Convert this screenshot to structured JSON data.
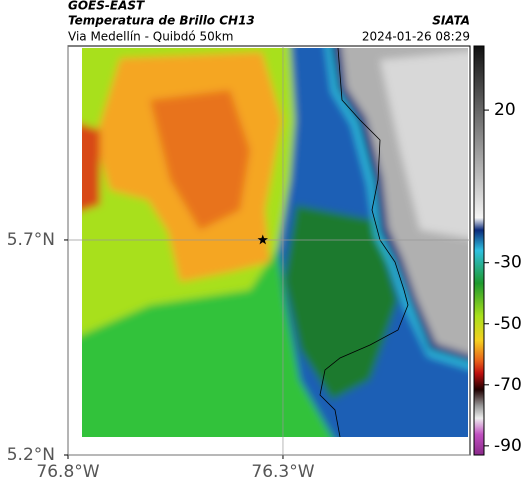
{
  "header": {
    "source": "GOES-EAST",
    "title": "Temperatura de Brillo CH13",
    "subtitle": "Via Medellín - Quibdó 50km",
    "brand": "SIATA",
    "timestamp": "2024-01-26 08:29"
  },
  "map": {
    "xlim": [
      -76.8,
      -75.865
    ],
    "ylim": [
      5.2,
      6.151
    ],
    "xticks": [
      {
        "value": -76.8,
        "label": "76.8°W"
      },
      {
        "value": -76.3,
        "label": "76.3°W"
      }
    ],
    "yticks": [
      {
        "value": 5.2,
        "label": "5.2°N"
      },
      {
        "value": 5.7,
        "label": "5.7°N"
      }
    ],
    "grid": true,
    "marker": {
      "lon": -76.347,
      "lat": 5.7
    }
  },
  "colorbar": {
    "lim": [
      -93,
      41
    ],
    "ticks": [
      20,
      -30,
      -50,
      -70,
      -90
    ]
  }
}
